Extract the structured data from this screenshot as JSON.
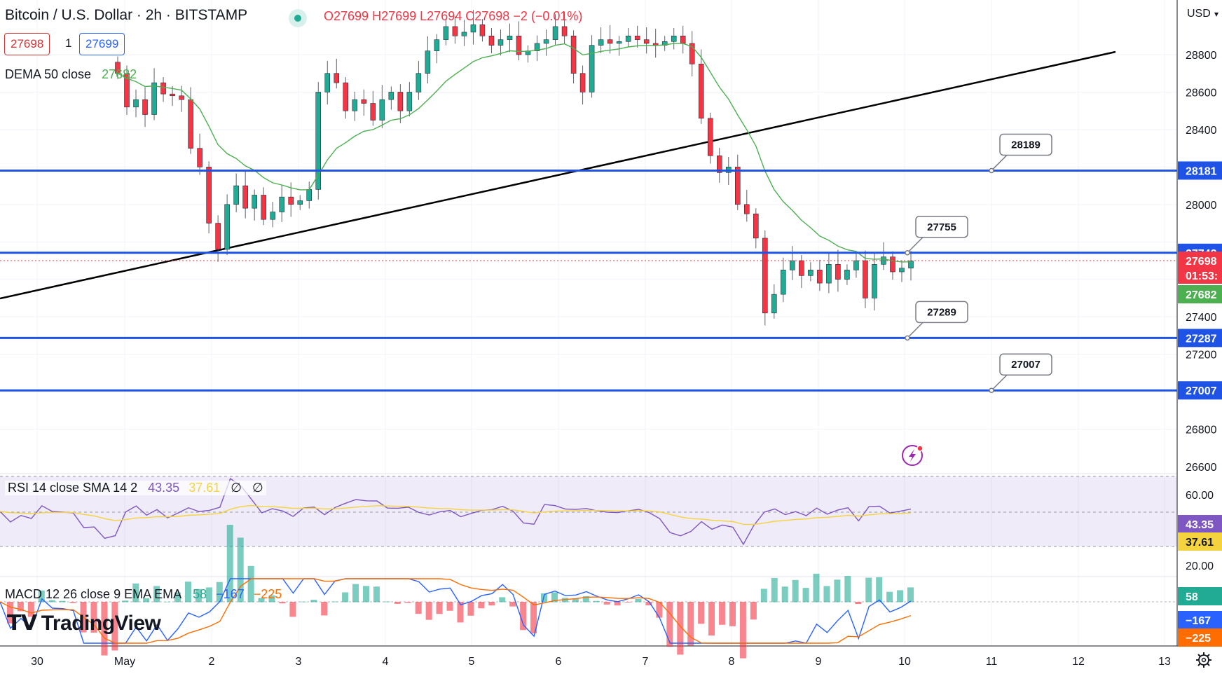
{
  "header": {
    "symbol_title": "Bitcoin / U.S. Dollar · 2h · BITSTAMP",
    "ohlc": {
      "o": "O27699",
      "h": "H27699",
      "l": "L27694",
      "c": "C27698",
      "change": "−2 (−0.01%)"
    },
    "sell_price": "27698",
    "quantity": "1",
    "buy_price": "27699",
    "dema_label": "DEMA 50 close",
    "dema_value": "27682"
  },
  "price_axis": {
    "currency": "USD",
    "ticks": [
      "28800",
      "28600",
      "28400",
      "28000",
      "27400",
      "27200",
      "26800",
      "26600"
    ],
    "countdown": "01:53:"
  },
  "time_axis": {
    "labels": [
      "30",
      "May",
      "2",
      "3",
      "4",
      "5",
      "6",
      "7",
      "8",
      "9",
      "10",
      "11",
      "12",
      "13"
    ]
  },
  "horizontal_levels": [
    {
      "value": "28181",
      "callout": "28189"
    },
    {
      "value": "27742",
      "callout": "27755"
    },
    {
      "value": "27287",
      "callout": "27289"
    },
    {
      "value": "27007",
      "callout": "27007"
    }
  ],
  "price_labels": {
    "last": "27698",
    "dema": "27682"
  },
  "rsi": {
    "label": "RSI 14 close SMA 14 2",
    "rsi_value": "43.35",
    "sma_value": "37.61",
    "extra1": "∅",
    "extra2": "∅",
    "ticks": [
      "60.00",
      "20.00"
    ]
  },
  "macd": {
    "label": "MACD 12 26 close 9 EMA EMA",
    "hist_value": "58",
    "macd_value": "−167",
    "signal_value": "−225"
  },
  "branding": {
    "logo_text": "TradingView"
  },
  "colors": {
    "up": "#22ab94",
    "down": "#f23645",
    "level": "#1e53e5",
    "trend": "#000000",
    "dema": "#4caf50",
    "rsi": "#7e57c2",
    "rsi_sma": "#f5d33f",
    "macd": "#2962ff",
    "signal": "#ff6d00",
    "accent_icon": "#9c27b0"
  },
  "chart_data": {
    "type": "candlestick",
    "interval": "2h",
    "series_name": "Bitcoin / U.S. Dollar",
    "price_range": [
      26600,
      28950
    ],
    "x_axis_dates": [
      "30",
      "May",
      "2",
      "3",
      "4",
      "5",
      "6",
      "7",
      "8",
      "9",
      "10",
      "11",
      "12",
      "13"
    ],
    "ohlc_close_path": [
      28700,
      28520,
      28560,
      28480,
      28650,
      28590,
      28580,
      28560,
      28300,
      28200,
      27900,
      27760,
      28000,
      28100,
      27980,
      28050,
      27920,
      27960,
      28040,
      28000,
      28020,
      28080,
      28600,
      28700,
      28650,
      28500,
      28560,
      28540,
      28450,
      28560,
      28600,
      28500,
      28600,
      28700,
      28820,
      28880,
      28950,
      28900,
      28920,
      28960,
      28900,
      28850,
      28880,
      28900,
      28800,
      28820,
      28860,
      28880,
      28950,
      28900,
      28700,
      28600,
      28850,
      28880,
      28860,
      28870,
      28900,
      28880,
      28860,
      28850,
      28870,
      28900,
      28860,
      28750,
      28460,
      28260,
      28170,
      28200,
      28000,
      27950,
      27820,
      27420,
      27520,
      27650,
      27700,
      27620,
      27650,
      27580,
      27680,
      27600,
      27650,
      27700,
      27500,
      27680,
      27720,
      27640,
      27660,
      27698
    ],
    "dema50": {
      "last": 27682
    },
    "levels": [
      28181,
      27742,
      27287,
      27007
    ],
    "trendline": {
      "from": 27480,
      "to": 28820
    },
    "rsi": {
      "range": [
        0,
        100
      ],
      "bands": [
        70,
        50,
        30
      ],
      "last": 43.35,
      "sma_last": 37.61
    },
    "macd": {
      "last_hist": 58,
      "last_macd": -167,
      "last_signal": -225
    }
  }
}
